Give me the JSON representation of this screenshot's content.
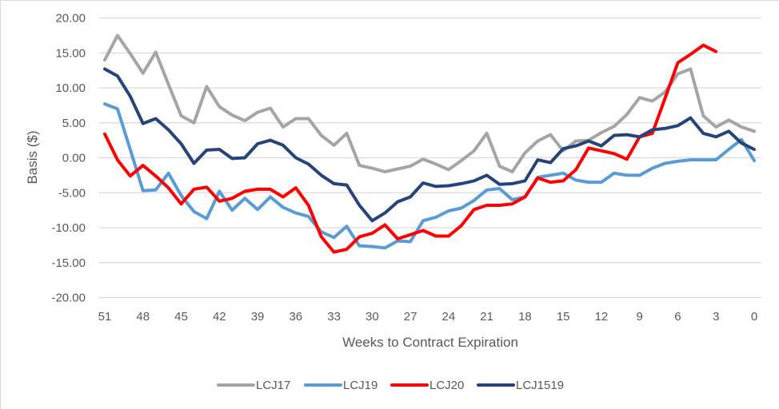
{
  "chart_data": {
    "type": "line",
    "title": "",
    "xlabel": "Weeks to Contract Expiration",
    "ylabel": "Basis ($)",
    "ylim": [
      -20,
      20
    ],
    "xlim": [
      51,
      0
    ],
    "x_reversed": true,
    "grid": true,
    "legend_position": "bottom",
    "y_ticks": [
      20,
      15,
      10,
      5,
      0,
      -5,
      -10,
      -15,
      -20
    ],
    "y_tick_labels": [
      "20.00",
      "15.00",
      "10.00",
      "5.00",
      "0.00",
      "-5.00",
      "-10.00",
      "-15.00",
      "-20.00"
    ],
    "x_ticks": [
      51,
      48,
      45,
      42,
      39,
      36,
      33,
      30,
      27,
      24,
      21,
      18,
      15,
      12,
      9,
      6,
      3,
      0
    ],
    "x_tick_labels": [
      "51",
      "48",
      "45",
      "42",
      "39",
      "36",
      "33",
      "30",
      "27",
      "24",
      "21",
      "18",
      "15",
      "12",
      "9",
      "6",
      "3",
      "0"
    ],
    "x": [
      51,
      50,
      49,
      48,
      47,
      46,
      45,
      44,
      43,
      42,
      41,
      40,
      39,
      38,
      37,
      36,
      35,
      34,
      33,
      32,
      31,
      30,
      29,
      28,
      27,
      26,
      25,
      24,
      23,
      22,
      21,
      20,
      19,
      18,
      17,
      16,
      15,
      14,
      13,
      12,
      11,
      10,
      9,
      8,
      7,
      6,
      5,
      4,
      3,
      2,
      1,
      0
    ],
    "series": [
      {
        "name": "LCJ17",
        "color": "#a5a5a5",
        "values": [
          14.0,
          17.5,
          14.9,
          12.1,
          15.1,
          10.5,
          6.0,
          5.0,
          10.2,
          7.3,
          6.1,
          5.3,
          6.5,
          7.1,
          4.4,
          5.6,
          5.6,
          3.2,
          1.8,
          3.5,
          -1.1,
          -1.5,
          -2.0,
          -1.6,
          -1.2,
          -0.2,
          -0.9,
          -1.7,
          -0.4,
          1.0,
          3.5,
          -1.2,
          -2.0,
          0.7,
          2.4,
          3.3,
          1.0,
          2.4,
          2.5,
          3.6,
          4.5,
          6.2,
          8.6,
          8.1,
          9.4,
          12.0,
          12.7,
          6.0,
          4.4,
          5.4,
          4.4,
          3.8
        ]
      },
      {
        "name": "LCJ19",
        "color": "#5b9bd5",
        "values": [
          7.7,
          7.0,
          1.2,
          -4.7,
          -4.6,
          -2.2,
          -5.4,
          -7.7,
          -8.7,
          -4.8,
          -7.5,
          -5.8,
          -7.4,
          -5.6,
          -7.1,
          -7.9,
          -8.4,
          -10.6,
          -11.4,
          -9.8,
          -12.6,
          -12.7,
          -12.9,
          -11.9,
          -12.0,
          -9.0,
          -8.5,
          -7.6,
          -7.2,
          -6.1,
          -4.6,
          -4.4,
          -6.0,
          -5.6,
          -2.8,
          -2.5,
          -2.2,
          -3.2,
          -3.5,
          -3.5,
          -2.2,
          -2.5,
          -2.5,
          -1.5,
          -0.8,
          -0.5,
          -0.3,
          -0.3,
          -0.3,
          1.2,
          2.6,
          -0.4
        ]
      },
      {
        "name": "LCJ20",
        "color": "#ff0000",
        "values": [
          3.4,
          -0.3,
          -2.6,
          -1.1,
          -2.6,
          -4.3,
          -6.6,
          -4.5,
          -4.2,
          -6.2,
          -5.8,
          -4.8,
          -4.5,
          -4.5,
          -5.6,
          -4.3,
          -6.8,
          -11.3,
          -13.5,
          -13.1,
          -11.3,
          -10.8,
          -9.6,
          -11.6,
          -11.0,
          -10.4,
          -11.2,
          -11.2,
          -9.7,
          -7.4,
          -6.8,
          -6.8,
          -6.6,
          -5.6,
          -2.9,
          -3.5,
          -3.3,
          -1.7,
          1.4,
          1.0,
          0.6,
          -0.2,
          3.0,
          3.5,
          8.5,
          13.6,
          14.8,
          16.1,
          15.2
        ]
      },
      {
        "name": "LCJ1519",
        "color": "#264478",
        "values": [
          12.7,
          11.7,
          8.8,
          4.9,
          5.6,
          4.0,
          2.0,
          -0.8,
          1.1,
          1.2,
          -0.1,
          0.0,
          2.0,
          2.5,
          1.8,
          0.0,
          -0.9,
          -2.5,
          -3.7,
          -3.9,
          -6.8,
          -9.0,
          -7.9,
          -6.3,
          -5.6,
          -3.6,
          -4.1,
          -4.0,
          -3.7,
          -3.3,
          -2.5,
          -3.8,
          -3.7,
          -3.3,
          -0.3,
          -0.7,
          1.3,
          1.7,
          2.4,
          1.7,
          3.2,
          3.3,
          3.0,
          4.0,
          4.2,
          4.6,
          5.7,
          3.5,
          3.0,
          3.8,
          2.1,
          1.2
        ]
      }
    ]
  }
}
